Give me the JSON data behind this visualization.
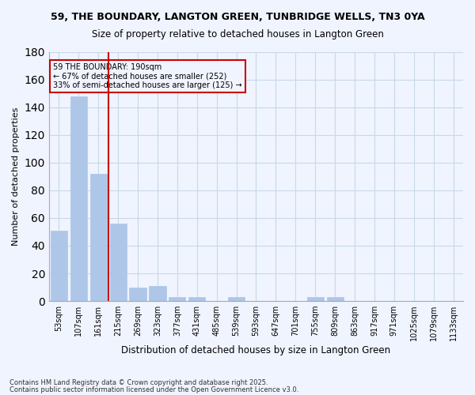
{
  "title1": "59, THE BOUNDARY, LANGTON GREEN, TUNBRIDGE WELLS, TN3 0YA",
  "title2": "Size of property relative to detached houses in Langton Green",
  "xlabel": "Distribution of detached houses by size in Langton Green",
  "ylabel": "Number of detached properties",
  "bar_values": [
    51,
    148,
    92,
    56,
    10,
    11,
    3,
    3,
    0,
    3,
    0,
    0,
    0,
    3,
    3,
    0,
    0,
    0,
    0,
    0,
    0
  ],
  "categories": [
    "53sqm",
    "107sqm",
    "161sqm",
    "215sqm",
    "269sqm",
    "323sqm",
    "377sqm",
    "431sqm",
    "485sqm",
    "539sqm",
    "593sqm",
    "647sqm",
    "701sqm",
    "755sqm",
    "809sqm",
    "863sqm",
    "917sqm",
    "971sqm",
    "1025sqm",
    "1079sqm",
    "1133sqm"
  ],
  "bar_color": "#aec6e8",
  "bar_edge_color": "#aec6e8",
  "grid_color": "#c8d8e8",
  "bg_color": "#f0f4ff",
  "ref_line_x": 2.5,
  "ref_line_color": "#cc0000",
  "annotation_text": "59 THE BOUNDARY: 190sqm\n← 67% of detached houses are smaller (252)\n33% of semi-detached houses are larger (125) →",
  "ylim": [
    0,
    180
  ],
  "yticks": [
    0,
    20,
    40,
    60,
    80,
    100,
    120,
    140,
    160,
    180
  ],
  "footnote1": "Contains HM Land Registry data © Crown copyright and database right 2025.",
  "footnote2": "Contains public sector information licensed under the Open Government Licence v3.0."
}
